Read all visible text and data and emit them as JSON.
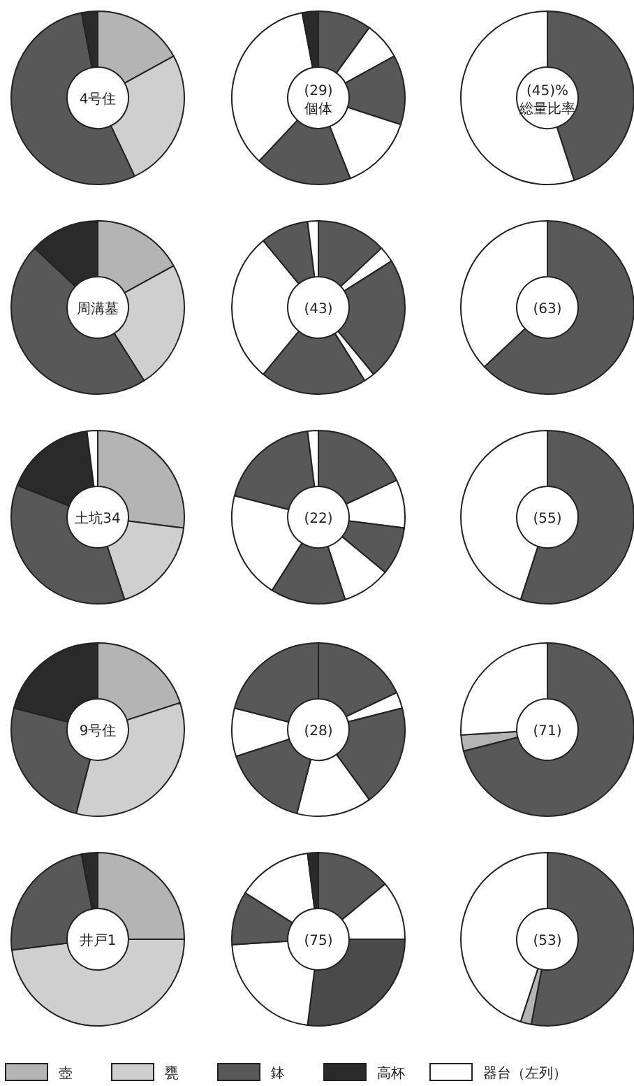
{
  "chart_data": [
    {
      "type": "donut",
      "title": "4号住",
      "categories": [
        null,
        null,
        null,
        null
      ],
      "values": [
        17,
        26,
        54,
        3
      ],
      "colors": [
        "#b4b4b4",
        "#cfcfcf",
        "#585858",
        "#2a2a2a"
      ]
    },
    {
      "type": "donut",
      "title": "(29)",
      "subtitle": "個体",
      "categories": [
        null,
        null,
        null,
        null,
        null,
        null,
        null
      ],
      "values": [
        10,
        7,
        13,
        14,
        18,
        35,
        3
      ],
      "colors": [
        "#585858",
        "#ffffff",
        "#585858",
        "#ffffff",
        "#585858",
        "#ffffff",
        "#2a2a2a"
      ]
    },
    {
      "type": "donut",
      "title": "(45)%",
      "subtitle": "総量比率",
      "categories": [
        null,
        null
      ],
      "values": [
        45,
        55
      ],
      "colors": [
        "#585858",
        "#ffffff"
      ]
    },
    {
      "type": "donut",
      "title": "周溝墓",
      "categories": [
        null,
        null,
        null,
        null
      ],
      "values": [
        17,
        24,
        46,
        13
      ],
      "colors": [
        "#b4b4b4",
        "#cfcfcf",
        "#585858",
        "#2a2a2a"
      ]
    },
    {
      "type": "donut",
      "title": "(43)",
      "categories": [
        null,
        null,
        null,
        null,
        null,
        null,
        null,
        null
      ],
      "values": [
        13,
        3,
        23,
        2,
        20,
        28,
        9,
        2
      ],
      "colors": [
        "#585858",
        "#ffffff",
        "#585858",
        "#ffffff",
        "#585858",
        "#ffffff",
        "#585858",
        "#ffffff"
      ]
    },
    {
      "type": "donut",
      "title": "(63)",
      "categories": [
        null,
        null
      ],
      "values": [
        63,
        37
      ],
      "colors": [
        "#585858",
        "#ffffff"
      ]
    },
    {
      "type": "donut",
      "title": "土坑34",
      "categories": [
        null,
        null,
        null,
        null,
        null
      ],
      "values": [
        27,
        18,
        36,
        17,
        2
      ],
      "colors": [
        "#b4b4b4",
        "#cfcfcf",
        "#585858",
        "#2a2a2a",
        "#ffffff"
      ]
    },
    {
      "type": "donut",
      "title": "(22)",
      "categories": [
        null,
        null,
        null,
        null,
        null,
        null,
        null,
        null
      ],
      "values": [
        18,
        9,
        9,
        9,
        14,
        20,
        19,
        2
      ],
      "colors": [
        "#585858",
        "#ffffff",
        "#585858",
        "#ffffff",
        "#585858",
        "#ffffff",
        "#585858",
        "#ffffff"
      ]
    },
    {
      "type": "donut",
      "title": "(55)",
      "categories": [
        null,
        null
      ],
      "values": [
        55,
        45
      ],
      "colors": [
        "#585858",
        "#ffffff"
      ]
    },
    {
      "type": "donut",
      "title": "9号住",
      "categories": [
        null,
        null,
        null,
        null
      ],
      "values": [
        20,
        34,
        25,
        21
      ],
      "colors": [
        "#b4b4b4",
        "#cfcfcf",
        "#585858",
        "#2a2a2a"
      ]
    },
    {
      "type": "donut",
      "title": "(28)",
      "categories": [
        null,
        null,
        null,
        null,
        null,
        null,
        null
      ],
      "values": [
        18,
        3,
        19,
        14,
        16,
        9,
        21
      ],
      "colors": [
        "#585858",
        "#ffffff",
        "#585858",
        "#ffffff",
        "#585858",
        "#ffffff",
        "#585858"
      ]
    },
    {
      "type": "donut",
      "title": "(71)",
      "categories": [
        null,
        null,
        null
      ],
      "values": [
        71,
        3,
        26
      ],
      "colors": [
        "#585858",
        "#b4b4b4",
        "#ffffff"
      ]
    },
    {
      "type": "donut",
      "title": "井戸1",
      "categories": [
        null,
        null,
        null,
        null
      ],
      "values": [
        25,
        48,
        24,
        3
      ],
      "colors": [
        "#b4b4b4",
        "#cfcfcf",
        "#585858",
        "#2a2a2a"
      ]
    },
    {
      "type": "donut",
      "title": "(75)",
      "categories": [
        null,
        null,
        null,
        null,
        null,
        null,
        null
      ],
      "values": [
        14,
        11,
        27,
        22,
        10,
        14,
        2
      ],
      "colors": [
        "#585858",
        "#ffffff",
        "#4a4a4a",
        "#ffffff",
        "#585858",
        "#ffffff",
        "#2a2a2a"
      ]
    },
    {
      "type": "donut",
      "title": "(53)",
      "categories": [
        null,
        null,
        null
      ],
      "values": [
        53,
        2,
        45
      ],
      "colors": [
        "#585858",
        "#b4b4b4",
        "#ffffff"
      ]
    },
    {
      "type": "other",
      "annotations": [
        "壺",
        "甕",
        "鉢",
        "高杯",
        "器台（左列）"
      ],
      "colors": [
        "#b4b4b4",
        "#cfcfcf",
        "#585858",
        "#2a2a2a",
        "#ffffff"
      ]
    }
  ]
}
